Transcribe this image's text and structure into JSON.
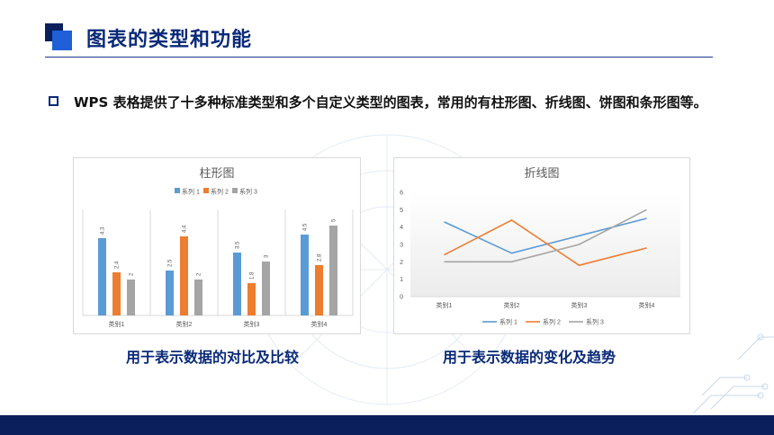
{
  "header": {
    "title": "图表的类型和功能"
  },
  "intro": {
    "text": "WPS 表格提供了十多种标准类型和多个自定义类型的图表，常用的有柱形图、折线图、饼图和条形图等。"
  },
  "captions": {
    "left": "用于表示数据的对比及比较",
    "right": "用于表示数据的变化及趋势"
  },
  "colors": {
    "series1": "#5b9bd5",
    "series2": "#ed7d31",
    "series3": "#a5a5a5",
    "accent": "#0a2a78"
  },
  "chart_data": [
    {
      "type": "bar",
      "title": "柱形图",
      "categories": [
        "类别1",
        "类别2",
        "类别3",
        "类别4"
      ],
      "series": [
        {
          "name": "系列 1",
          "values": [
            4.3,
            2.5,
            3.5,
            4.5
          ]
        },
        {
          "name": "系列 2",
          "values": [
            2.4,
            4.4,
            1.8,
            2.8
          ]
        },
        {
          "name": "系列 3",
          "values": [
            2,
            2,
            3,
            5
          ]
        }
      ],
      "ylim": [
        0,
        6
      ],
      "legend": "top",
      "data_labels": true
    },
    {
      "type": "line",
      "title": "折线图",
      "categories": [
        "类别1",
        "类别2",
        "类别3",
        "类别4"
      ],
      "series": [
        {
          "name": "系列 1",
          "values": [
            4.3,
            2.5,
            3.5,
            4.5
          ]
        },
        {
          "name": "系列 2",
          "values": [
            2.4,
            4.4,
            1.8,
            2.8
          ]
        },
        {
          "name": "系列 3",
          "values": [
            2,
            2,
            3,
            5
          ]
        }
      ],
      "yticks": [
        0,
        1,
        2,
        3,
        4,
        5,
        6
      ],
      "ylim": [
        0,
        6
      ],
      "legend": "bottom"
    }
  ]
}
